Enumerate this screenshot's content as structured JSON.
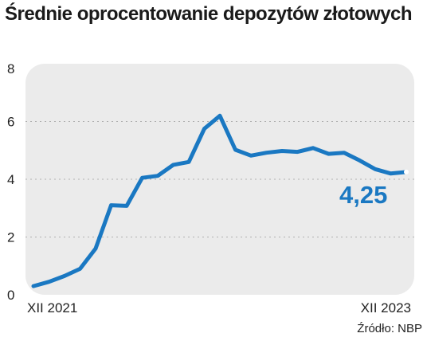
{
  "title": "Średnie oprocentowanie depozytów złotowych",
  "source": "Źródło: NBP",
  "colors": {
    "line": "#1a78c2",
    "panel": "#ebebeb",
    "grid": "#b0b0b0",
    "text": "#222222"
  },
  "chart_data": {
    "type": "line",
    "title": "Średnie oprocentowanie depozytów złotowych",
    "xlabel": "",
    "ylabel": "",
    "ylim": [
      0,
      8
    ],
    "yticks": [
      "0",
      "2",
      "4",
      "6",
      "8"
    ],
    "x_tick_labels": [
      "XII 2021",
      "XII 2023"
    ],
    "x": [
      "XII 2021",
      "I 2022",
      "II 2022",
      "III 2022",
      "IV 2022",
      "V 2022",
      "VI 2022",
      "VII 2022",
      "VIII 2022",
      "IX 2022",
      "X 2022",
      "XI 2022",
      "XII 2022",
      "I 2023",
      "II 2023",
      "III 2023",
      "IV 2023",
      "V 2023",
      "VI 2023",
      "VII 2023",
      "VIII 2023",
      "IX 2023",
      "X 2023",
      "XI 2023",
      "XII 2023"
    ],
    "series": [
      {
        "values": [
          0.3,
          0.45,
          0.65,
          0.9,
          1.6,
          3.1,
          3.08,
          4.05,
          4.12,
          4.5,
          4.6,
          5.75,
          6.2,
          5.02,
          4.82,
          4.92,
          4.98,
          4.95,
          5.08,
          4.88,
          4.92,
          4.65,
          4.35,
          4.2,
          4.25
        ]
      }
    ],
    "callout": "4,25",
    "grid": true
  }
}
